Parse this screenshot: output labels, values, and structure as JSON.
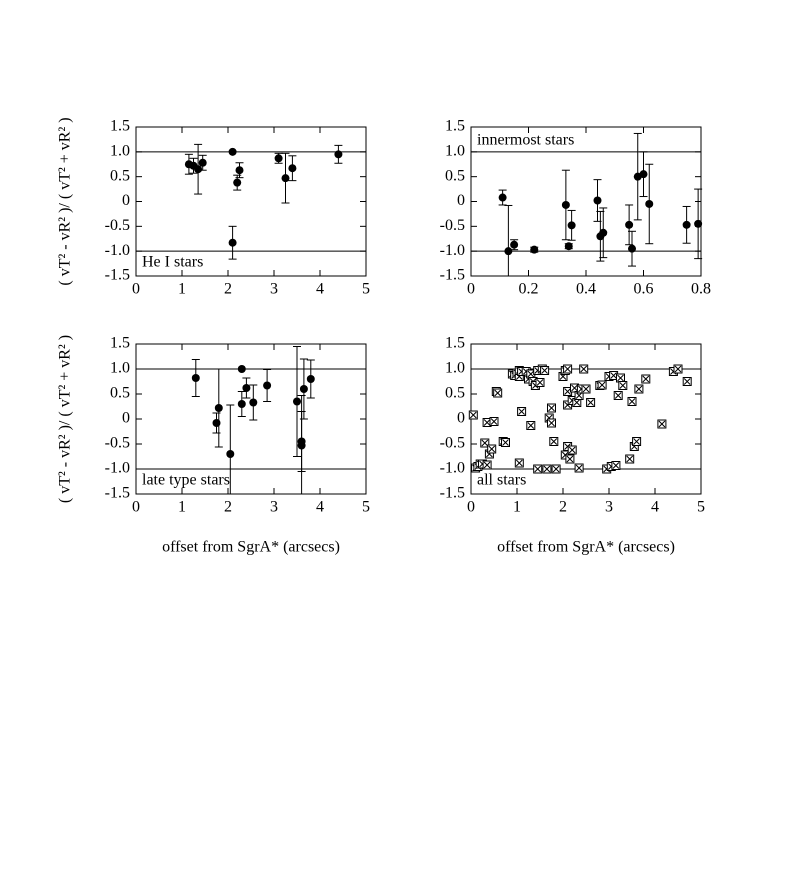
{
  "chart_data": [
    {
      "type": "scatter",
      "marker": "circle",
      "annotation": "He I stars",
      "annotation_position": "bottom-left",
      "ylabel": "( vT² - vR² )/ ( vT² + vR² )",
      "x": [
        1.15,
        1.25,
        1.35,
        1.45,
        2.1,
        2.1,
        2.2,
        2.25,
        3.1,
        3.25,
        3.4,
        4.4
      ],
      "values": [
        0.75,
        0.72,
        0.65,
        0.78,
        1.0,
        -0.83,
        0.38,
        0.63,
        0.87,
        0.47,
        0.67,
        0.95
      ],
      "errors": [
        0.2,
        0.15,
        0.5,
        0.15,
        0,
        0.33,
        0.15,
        0.15,
        0.1,
        0.5,
        0.25,
        0.18
      ],
      "xlim": [
        0,
        5
      ],
      "ylim": [
        -1.5,
        1.5
      ],
      "xticks": [
        0,
        1,
        2,
        3,
        4,
        5
      ],
      "yticks": [
        1.5,
        {
          "value": 1,
          "label": "1.0"
        },
        0.5,
        0,
        -0.5,
        {
          "value": -1,
          "label": "-1.0"
        },
        -1.5
      ],
      "hlines": [
        1,
        -1
      ]
    },
    {
      "type": "scatter",
      "marker": "circle",
      "annotation": "innermost stars",
      "annotation_position": "top-left",
      "x": [
        0.11,
        0.13,
        0.15,
        0.22,
        0.33,
        0.34,
        0.35,
        0.44,
        0.45,
        0.46,
        0.55,
        0.56,
        0.58,
        0.6,
        0.62,
        0.75,
        0.79
      ],
      "values": [
        0.08,
        -1.0,
        -0.87,
        -0.97,
        -0.07,
        -0.9,
        -0.48,
        0.02,
        -0.7,
        -0.63,
        -0.47,
        -0.95,
        0.5,
        0.55,
        -0.05,
        -0.47,
        -0.45
      ],
      "errors": [
        0.15,
        0.92,
        0.1,
        0.05,
        0.7,
        0.05,
        0.3,
        0.42,
        0.5,
        0.5,
        0.4,
        0.35,
        0.87,
        0.45,
        0.8,
        0.37,
        0.7
      ],
      "xlim": [
        0,
        0.8
      ],
      "ylim": [
        -1.5,
        1.5
      ],
      "xticks": [
        0,
        0.2,
        0.4,
        0.6,
        0.8
      ],
      "yticks": [
        1.5,
        {
          "value": 1,
          "label": "1.0"
        },
        0.5,
        0,
        -0.5,
        {
          "value": -1,
          "label": "-1.0"
        },
        -1.5
      ],
      "hlines": [
        1,
        -1
      ]
    },
    {
      "type": "scatter",
      "marker": "circle",
      "annotation": "late type stars",
      "annotation_position": "bottom-left",
      "ylabel": "( vT² - vR² )/ ( vT² + vR² )",
      "xlabel": "offset from SgrA* (arcsecs)",
      "x": [
        1.3,
        1.75,
        1.8,
        2.05,
        2.3,
        2.3,
        2.4,
        2.55,
        2.85,
        3.5,
        3.6,
        3.6,
        3.65,
        3.8
      ],
      "values": [
        0.82,
        -0.08,
        0.22,
        -0.7,
        1.0,
        0.3,
        0.62,
        0.33,
        0.67,
        0.35,
        -0.45,
        -0.53,
        0.6,
        0.8
      ],
      "errors": [
        0.37,
        0.2,
        0.78,
        0.98,
        0,
        0.25,
        0.2,
        0.35,
        0.32,
        1.1,
        0.6,
        1.0,
        0.6,
        0.38
      ],
      "xlim": [
        0,
        5
      ],
      "ylim": [
        -1.5,
        1.5
      ],
      "xticks": [
        0,
        1,
        2,
        3,
        4,
        5
      ],
      "yticks": [
        1.5,
        {
          "value": 1,
          "label": "1.0"
        },
        0.5,
        0,
        -0.5,
        {
          "value": -1,
          "label": "-1.0"
        },
        -1.5
      ],
      "hlines": [
        1,
        -1
      ]
    },
    {
      "type": "scatter",
      "marker": "boxcross",
      "annotation": "all stars",
      "annotation_position": "bottom-left",
      "xlabel": "offset from SgrA* (arcsecs)",
      "x": [
        0.05,
        0.1,
        0.15,
        0.2,
        0.25,
        0.3,
        0.35,
        0.35,
        0.4,
        0.45,
        0.5,
        0.55,
        0.58,
        0.7,
        0.75,
        0.9,
        0.95,
        1.0,
        1.05,
        1.05,
        1.1,
        1.1,
        1.05,
        1.2,
        1.25,
        1.3,
        1.35,
        1.3,
        1.4,
        1.45,
        1.5,
        1.55,
        1.45,
        1.6,
        1.65,
        1.7,
        1.75,
        1.75,
        1.8,
        1.85,
        2.0,
        2.05,
        2.1,
        2.1,
        2.1,
        2.05,
        2.1,
        2.15,
        2.2,
        2.2,
        2.25,
        2.3,
        2.35,
        2.4,
        2.45,
        2.5,
        2.35,
        2.6,
        2.8,
        2.85,
        2.95,
        3.0,
        3.05,
        3.1,
        3.15,
        3.2,
        3.25,
        3.3,
        3.45,
        3.5,
        3.55,
        3.6,
        3.65,
        3.8,
        4.15,
        4.4,
        4.5,
        4.7
      ],
      "values": [
        0.08,
        -0.98,
        -0.95,
        -0.9,
        -0.9,
        -0.48,
        -0.07,
        -0.92,
        -0.7,
        -0.6,
        -0.05,
        0.55,
        0.52,
        -0.45,
        -0.47,
        0.9,
        0.87,
        0.92,
        0.85,
        0.97,
        0.95,
        0.15,
        -0.88,
        0.95,
        0.8,
        0.9,
        0.75,
        -0.13,
        0.67,
        0.97,
        0.73,
        1.0,
        -1.0,
        0.97,
        -1.0,
        0.02,
        -0.08,
        0.22,
        -0.45,
        -1.0,
        0.85,
        0.97,
        1.0,
        0.55,
        0.28,
        -0.72,
        -0.55,
        -0.8,
        -0.62,
        0.37,
        0.62,
        0.33,
        0.47,
        0.6,
        1.0,
        0.6,
        -0.98,
        0.33,
        0.67,
        0.68,
        -1.0,
        0.85,
        -0.95,
        0.87,
        -0.93,
        0.47,
        0.82,
        0.67,
        -0.8,
        0.35,
        -0.55,
        -0.45,
        0.6,
        0.8,
        -0.1,
        0.95,
        1.0,
        0.75
      ],
      "xlim": [
        0,
        5
      ],
      "ylim": [
        -1.5,
        1.5
      ],
      "xticks": [
        0,
        1,
        2,
        3,
        4,
        5
      ],
      "yticks": [
        1.5,
        {
          "value": 1,
          "label": "1.0"
        },
        0.5,
        0,
        -0.5,
        {
          "value": -1,
          "label": "-1.0"
        },
        -1.5
      ],
      "hlines": [
        1,
        -1
      ]
    }
  ]
}
